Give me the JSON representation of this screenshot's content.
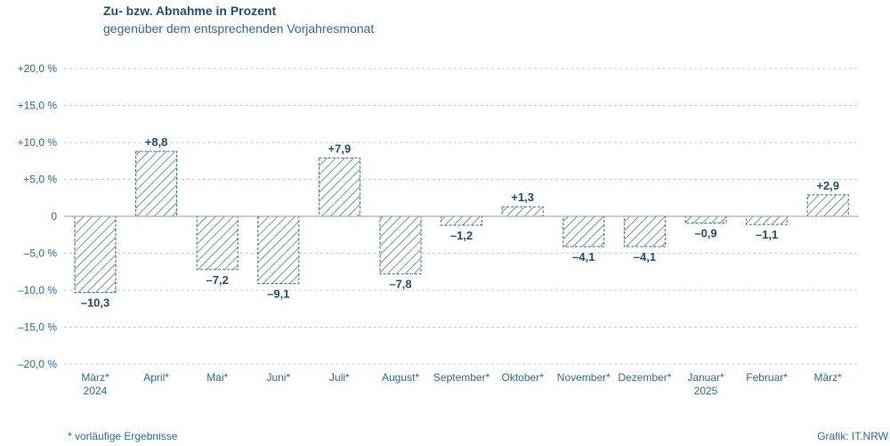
{
  "title": "Zu- bzw. Abnahme in Prozent",
  "subtitle": "gegenüber dem entsprechenden Vorjahresmonat",
  "footnote": "*  vorläufige Ergebnisse",
  "source": "Grafik: IT.NRW",
  "colors": {
    "bar_stroke": "#2e6a97",
    "text": "#2e6a97",
    "grid": "#c8c8c8"
  },
  "chart_data": {
    "type": "bar",
    "title": "Zu- bzw. Abnahme in Prozent",
    "subtitle": "gegenüber dem entsprechenden Vorjahresmonat",
    "categories": [
      [
        "März*",
        "2024"
      ],
      [
        "April*"
      ],
      [
        "Mai*"
      ],
      [
        "Juni*"
      ],
      [
        "Juli*"
      ],
      [
        "August*"
      ],
      [
        "September*"
      ],
      [
        "Oktober*"
      ],
      [
        "November*"
      ],
      [
        "Dezember*"
      ],
      [
        "Januar*",
        "2025"
      ],
      [
        "Februar*"
      ],
      [
        "März*"
      ]
    ],
    "values": [
      -10.3,
      8.8,
      -7.2,
      -9.1,
      7.9,
      -7.8,
      -1.2,
      1.3,
      -4.1,
      -4.1,
      -0.9,
      -1.1,
      2.9
    ],
    "value_labels": [
      "–10,3",
      "+8,8",
      "–7,2",
      "–9,1",
      "+7,9",
      "–7,8",
      "–1,2",
      "+1,3",
      "–4,1",
      "–4,1",
      "–0,9",
      "–1,1",
      "+2,9"
    ],
    "ylim": [
      -20,
      20
    ],
    "yticks": [
      20,
      15,
      10,
      5,
      0,
      -5,
      -10,
      -15,
      -20
    ],
    "ytick_labels": [
      "+20,0 %",
      "+15,0 %",
      "+10,0 %",
      "+5,0 %",
      "0",
      "–5,0 %",
      "–10,0 %",
      "–15,0 %",
      "–20,0 %"
    ],
    "grid": true,
    "fill": "hatched"
  }
}
